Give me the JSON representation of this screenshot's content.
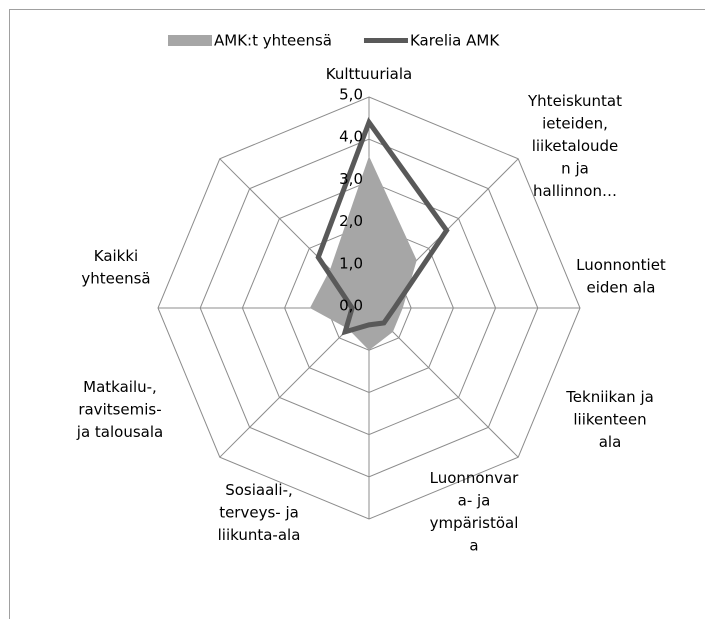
{
  "chart_data": {
    "type": "radar",
    "categories": [
      "Kulttuuriala",
      "Yhteiskuntat\nieteiden,\nliiketaloude\nn ja\nhallinnon…",
      "Luonnontiet\neiden ala",
      "Tekniikan ja\nliikenteen\nala",
      "Luonnonvar\na- ja\nympäristöal\na",
      "Sosiaali-,\nterveys- ja\nliikunta-ala",
      "Matkailu-,\nravitsemis-\nja talousala",
      "Kaikki\nyhteensä"
    ],
    "series": [
      {
        "name": "AMK:t yhteensä",
        "color": "#a6a6a6",
        "style": "area",
        "values": [
          3.6,
          1.6,
          0.8,
          0.8,
          1.0,
          0.7,
          1.4,
          1.3
        ]
      },
      {
        "name": "Karelia AMK",
        "color": "#595959",
        "style": "line",
        "values": [
          4.4,
          2.6,
          0.6,
          0.5,
          0.4,
          0.8,
          0.4,
          1.7
        ]
      }
    ],
    "ylim": [
      0,
      5
    ],
    "yticks": [
      {
        "value": 0,
        "label": "0,0"
      },
      {
        "value": 1,
        "label": "1,0"
      },
      {
        "value": 2,
        "label": "2,0"
      },
      {
        "value": 3,
        "label": "3,0"
      },
      {
        "value": 4,
        "label": "4,0"
      },
      {
        "value": 5,
        "label": "5,0"
      }
    ],
    "grid": true,
    "legend": "top"
  }
}
